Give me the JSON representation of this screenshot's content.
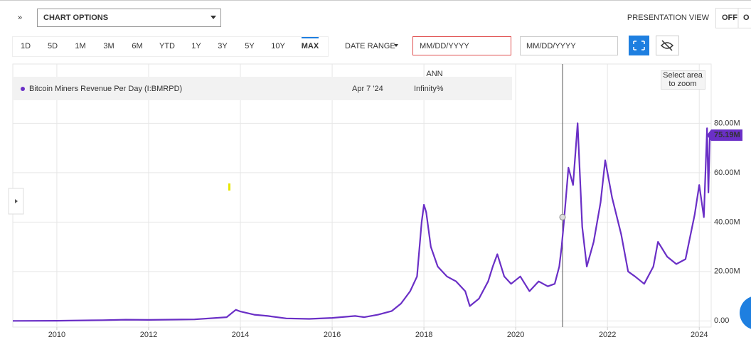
{
  "toolbar": {
    "chart_options": "CHART OPTIONS",
    "presentation_view": "PRESENTATION VIEW",
    "off": "OFF",
    "on": "O",
    "ranges": [
      "1D",
      "5D",
      "1M",
      "3M",
      "6M",
      "YTD",
      "1Y",
      "3Y",
      "5Y",
      "10Y",
      "MAX"
    ],
    "active_range": "MAX",
    "date_range": "DATE RANGE",
    "date_placeholders": [
      "MM/DD/YYYY",
      "MM/DD/YYYY"
    ]
  },
  "zoom_hint": [
    "Select area",
    "to zoom"
  ],
  "tooltip": {
    "date": "Apr 7 '24",
    "column": "ANN",
    "change": "Infinity%"
  },
  "chart_data": {
    "type": "line",
    "series": [
      {
        "name": "Bitcoin Miners Revenue Per Day (I:BMRPD)",
        "color": "#6a2fc6",
        "x": [
          2009.04,
          2010,
          2011,
          2011.5,
          2012,
          2013,
          2013.7,
          2013.9,
          2014,
          2014.3,
          2014.6,
          2015,
          2015.5,
          2016,
          2016.5,
          2016.7,
          2017,
          2017.3,
          2017.5,
          2017.7,
          2017.85,
          2017.95,
          2018.0,
          2018.05,
          2018.15,
          2018.3,
          2018.5,
          2018.7,
          2018.9,
          2019.0,
          2019.2,
          2019.4,
          2019.5,
          2019.6,
          2019.75,
          2019.9,
          2020.1,
          2020.3,
          2020.5,
          2020.7,
          2020.85,
          2020.95,
          2021.0,
          2021.05,
          2021.15,
          2021.25,
          2021.35,
          2021.45,
          2021.55,
          2021.7,
          2021.85,
          2021.95,
          2022.1,
          2022.3,
          2022.45,
          2022.6,
          2022.8,
          2023.0,
          2023.1,
          2023.3,
          2023.5,
          2023.7,
          2023.9,
          2024.0,
          2024.1,
          2024.17,
          2024.2,
          2024.23
        ],
        "values": [
          0,
          50000,
          300000,
          500000,
          400000,
          600000,
          1500000,
          4500000,
          3800000,
          2500000,
          2000000,
          1000000,
          800000,
          1200000,
          2000000,
          1500000,
          2500000,
          4000000,
          7000000,
          12000000,
          18000000,
          40000000,
          47000000,
          44000000,
          30000000,
          22000000,
          18000000,
          16000000,
          12000000,
          6000000,
          9000000,
          16000000,
          22000000,
          27000000,
          18000000,
          15000000,
          18000000,
          12000000,
          16000000,
          14000000,
          15000000,
          22000000,
          30000000,
          40000000,
          62000000,
          55000000,
          80000000,
          38000000,
          22000000,
          32000000,
          48000000,
          65000000,
          50000000,
          35000000,
          20000000,
          18000000,
          15000000,
          22000000,
          32000000,
          26000000,
          23000000,
          25000000,
          43000000,
          55000000,
          42000000,
          78000000,
          52000000,
          75190000
        ]
      }
    ],
    "last_value_label": "75.19M",
    "xlim": [
      2009.04,
      2024.26
    ],
    "xticks": [
      2010,
      2012,
      2014,
      2016,
      2018,
      2020,
      2022,
      2024
    ],
    "ylim": [
      -2500000,
      104000000
    ],
    "yticks": [
      {
        "value": 0,
        "label": "0.00"
      },
      {
        "value": 20000000,
        "label": "20.00M"
      },
      {
        "value": 40000000,
        "label": "40.00M"
      },
      {
        "value": 60000000,
        "label": "60.00M"
      },
      {
        "value": 80000000,
        "label": "80.00M"
      }
    ],
    "grid": true
  }
}
